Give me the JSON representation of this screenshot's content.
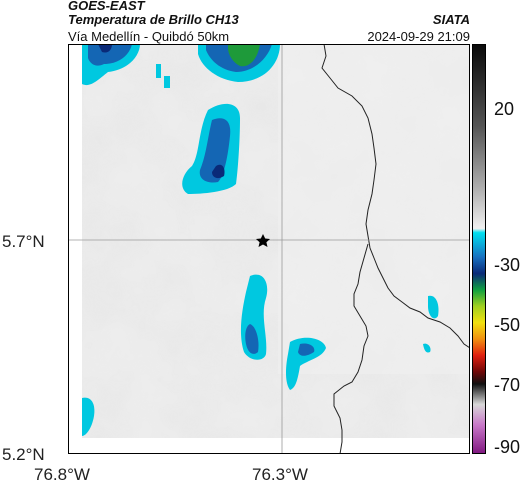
{
  "header": {
    "satellite": "GOES-EAST",
    "product": "Temperatura de Brillo CH13",
    "region": "Vía Medellín - Quibdó 50km",
    "organization": "SIATA",
    "timestamp": "2024-09-29 21:09"
  },
  "map": {
    "lat_labels": [
      "5.7°N",
      "5.2°N"
    ],
    "lon_labels": [
      "76.8°W",
      "76.3°W"
    ],
    "marker": "star",
    "colors": {
      "background_gray": "#c8c8c8",
      "cold_cyan": "#00c8e0",
      "cold_blue": "#1466b4",
      "cold_navy": "#0a2a78",
      "cold_green": "#1e9a3a",
      "boundary": "#222222",
      "gridline": "#9a9a9a"
    }
  },
  "colorbar": {
    "labels": [
      "20",
      "-30",
      "-50",
      "-70",
      "-90"
    ]
  }
}
